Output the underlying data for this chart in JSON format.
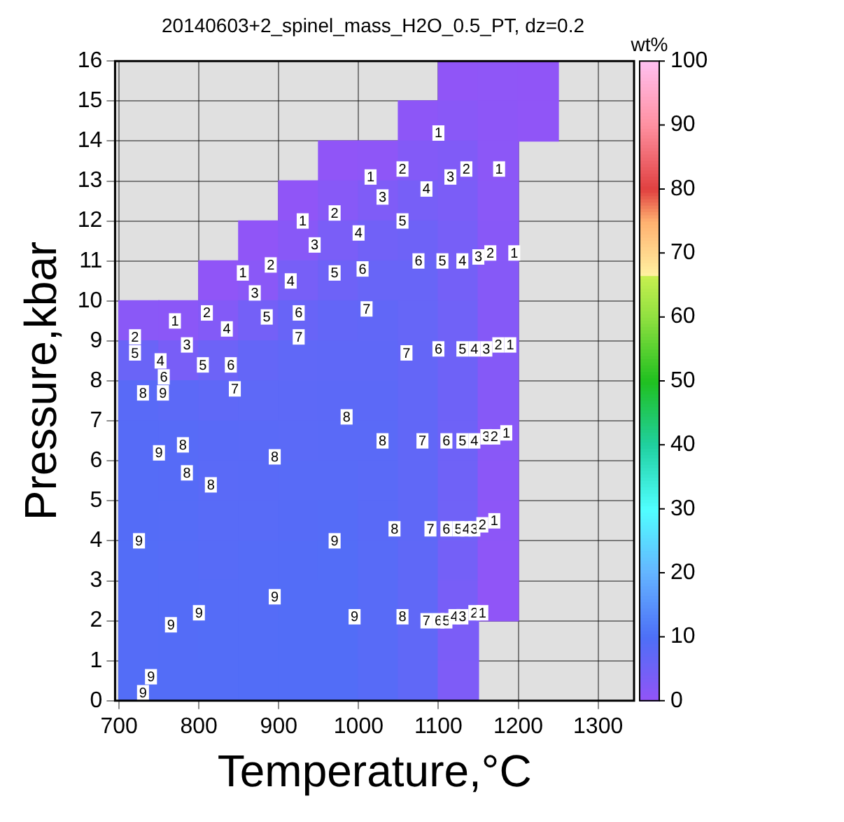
{
  "chart_data": {
    "type": "scatter",
    "title": "20140603+2_spinel_mass_H2O_0.5_PT, dz=0.2",
    "xlabel": "Temperature,°C",
    "ylabel": "Pressure,kbar",
    "clabel": "wt%",
    "xlim": [
      695,
      1345
    ],
    "xticks": [
      700,
      800,
      900,
      1000,
      1100,
      1200,
      1300
    ],
    "ylim": [
      0,
      16
    ],
    "yticks": [
      0,
      1,
      2,
      3,
      4,
      5,
      6,
      7,
      8,
      9,
      10,
      11,
      12,
      13,
      14,
      15,
      16
    ],
    "clim": [
      0,
      100
    ],
    "cticks": [
      0,
      10,
      20,
      30,
      40,
      50,
      60,
      70,
      80,
      90,
      100
    ],
    "grid": true,
    "marker": "square",
    "x": [
      1125,
      1175,
      1225,
      1075,
      1125,
      1175,
      1225,
      975,
      1025,
      1075,
      1125,
      1175,
      925,
      975,
      1025,
      1075,
      1125,
      1175,
      875,
      925,
      975,
      1025,
      1075,
      1125,
      1175,
      825,
      875,
      925,
      975,
      1025,
      1075,
      1125,
      1175,
      725,
      775,
      825,
      875,
      925,
      975,
      1025,
      1075,
      1125,
      1175,
      725,
      775,
      825,
      875,
      925,
      975,
      1025,
      1075,
      1125,
      1175,
      725,
      775,
      825,
      875,
      925,
      975,
      1025,
      1075,
      1125,
      1175,
      725,
      775,
      825,
      875,
      925,
      975,
      1025,
      1075,
      1125,
      1175,
      725,
      775,
      825,
      875,
      925,
      975,
      1025,
      1075,
      1125,
      1175,
      725,
      775,
      825,
      875,
      925,
      975,
      1025,
      1075,
      1125,
      1175,
      725,
      775,
      825,
      875,
      925,
      975,
      1025,
      1075,
      1125,
      1175,
      725,
      775,
      825,
      875,
      925,
      975,
      1025,
      1075,
      1125,
      1175,
      725,
      775,
      825,
      875,
      925,
      975,
      1025,
      1075,
      1125,
      725,
      775,
      825,
      875,
      925,
      975,
      1025,
      1075,
      1125
    ],
    "values": [
      15.5,
      15.5,
      15.5,
      14.5,
      14.5,
      14.5,
      14.5,
      13.5,
      13.5,
      13.5,
      13.5,
      13.5,
      12.5,
      12.5,
      12.5,
      12.5,
      12.5,
      12.5,
      11.5,
      11.5,
      11.5,
      11.5,
      11.5,
      11.5,
      11.5,
      10.5,
      10.5,
      10.5,
      10.5,
      10.5,
      10.5,
      10.5,
      10.5,
      9.5,
      9.5,
      9.5,
      9.5,
      9.5,
      9.5,
      9.5,
      9.5,
      9.5,
      9.5,
      8.5,
      8.5,
      8.5,
      8.5,
      8.5,
      8.5,
      8.5,
      8.5,
      8.5,
      8.5,
      7.5,
      7.5,
      7.5,
      7.5,
      7.5,
      7.5,
      7.5,
      7.5,
      7.5,
      7.5,
      6.5,
      6.5,
      6.5,
      6.5,
      6.5,
      6.5,
      6.5,
      6.5,
      6.5,
      6.5,
      5.5,
      5.5,
      5.5,
      5.5,
      5.5,
      5.5,
      5.5,
      5.5,
      5.5,
      5.5,
      4.5,
      4.5,
      4.5,
      4.5,
      4.5,
      4.5,
      4.5,
      4.5,
      4.5,
      4.5,
      3.5,
      3.5,
      3.5,
      3.5,
      3.5,
      3.5,
      3.5,
      3.5,
      3.5,
      3.5,
      2.5,
      2.5,
      2.5,
      2.5,
      2.5,
      2.5,
      2.5,
      2.5,
      2.5,
      2.5,
      1.5,
      1.5,
      1.5,
      1.5,
      1.5,
      1.5,
      1.5,
      1.5,
      1.5,
      0.5,
      0.5,
      0.5,
      0.5,
      0.5,
      0.5,
      0.5,
      0.5,
      0.5
    ],
    "cvalues": [
      0.5,
      0.6,
      0.4,
      0.8,
      1.5,
      0.8,
      0.5,
      0.4,
      0.7,
      2.3,
      2.7,
      1.0,
      0.5,
      1.7,
      2.8,
      4.0,
      3.5,
      1.3,
      0.5,
      1.6,
      3.6,
      4.8,
      5.3,
      4.0,
      1.6,
      0.5,
      1.3,
      4.0,
      5.3,
      6.2,
      6.2,
      4.4,
      1.9,
      1.3,
      1.2,
      2.3,
      4.5,
      6.1,
      6.8,
      7.1,
      6.5,
      5.0,
      2.0,
      5.8,
      3.8,
      5.5,
      6.7,
      7.3,
      7.4,
      7.5,
      6.7,
      5.3,
      2.0,
      8.3,
      7.8,
      7.4,
      7.6,
      7.7,
      7.8,
      7.9,
      7.0,
      5.3,
      1.8,
      8.7,
      8.6,
      8.3,
      8.1,
      8.0,
      8.1,
      8.1,
      7.2,
      5.3,
      1.5,
      8.9,
      8.7,
      8.2,
      8.3,
      8.4,
      8.5,
      8.2,
      7.3,
      5.2,
      1.2,
      9.0,
      8.8,
      8.4,
      8.5,
      8.7,
      8.9,
      8.3,
      7.4,
      5.0,
      0.9,
      9.1,
      8.9,
      8.6,
      8.8,
      9.0,
      9.1,
      8.4,
      7.4,
      4.4,
      0.7,
      9.0,
      9.0,
      8.8,
      8.9,
      9.2,
      9.2,
      8.4,
      7.3,
      3.8,
      0.5,
      8.9,
      9.0,
      9.1,
      9.2,
      9.3,
      9.3,
      8.5,
      7.3,
      3.4,
      9.1,
      9.2,
      9.2,
      9.3,
      9.3,
      9.3,
      8.6,
      7.3,
      3.0
    ],
    "annotations": [
      {
        "text": "2",
        "x": 720,
        "y": 9.1
      },
      {
        "text": "5",
        "x": 720,
        "y": 8.7
      },
      {
        "text": "4",
        "x": 752,
        "y": 8.5
      },
      {
        "text": "6",
        "x": 756,
        "y": 8.1
      },
      {
        "text": "9",
        "x": 755,
        "y": 7.7
      },
      {
        "text": "8",
        "x": 730,
        "y": 7.7
      },
      {
        "text": "1",
        "x": 770,
        "y": 9.5
      },
      {
        "text": "2",
        "x": 810,
        "y": 9.7
      },
      {
        "text": "3",
        "x": 785,
        "y": 8.9
      },
      {
        "text": "4",
        "x": 835,
        "y": 9.3
      },
      {
        "text": "5",
        "x": 805,
        "y": 8.4
      },
      {
        "text": "6",
        "x": 840,
        "y": 8.4
      },
      {
        "text": "7",
        "x": 845,
        "y": 7.8
      },
      {
        "text": "3",
        "x": 870,
        "y": 10.2
      },
      {
        "text": "5",
        "x": 885,
        "y": 9.6
      },
      {
        "text": "6",
        "x": 925,
        "y": 9.7
      },
      {
        "text": "7",
        "x": 925,
        "y": 9.1
      },
      {
        "text": "1",
        "x": 855,
        "y": 10.7
      },
      {
        "text": "2",
        "x": 890,
        "y": 10.9
      },
      {
        "text": "4",
        "x": 915,
        "y": 10.5
      },
      {
        "text": "5",
        "x": 970,
        "y": 10.7
      },
      {
        "text": "6",
        "x": 1005,
        "y": 10.8
      },
      {
        "text": "7",
        "x": 1010,
        "y": 9.8
      },
      {
        "text": "1",
        "x": 930,
        "y": 12.0
      },
      {
        "text": "2",
        "x": 970,
        "y": 12.2
      },
      {
        "text": "3",
        "x": 945,
        "y": 11.4
      },
      {
        "text": "4",
        "x": 1000,
        "y": 11.7
      },
      {
        "text": "5",
        "x": 1055,
        "y": 12.0
      },
      {
        "text": "3",
        "x": 1030,
        "y": 12.6
      },
      {
        "text": "1",
        "x": 1015,
        "y": 13.1
      },
      {
        "text": "2",
        "x": 1055,
        "y": 13.3
      },
      {
        "text": "7",
        "x": 1060,
        "y": 8.7
      },
      {
        "text": "1",
        "x": 1100,
        "y": 14.2
      },
      {
        "text": "4",
        "x": 1085,
        "y": 12.8
      },
      {
        "text": "3",
        "x": 1115,
        "y": 13.1
      },
      {
        "text": "2",
        "x": 1135,
        "y": 13.3
      },
      {
        "text": "1",
        "x": 1176,
        "y": 13.3
      },
      {
        "text": "6",
        "x": 1075,
        "y": 11.0
      },
      {
        "text": "5",
        "x": 1105,
        "y": 11.0
      },
      {
        "text": "4",
        "x": 1130,
        "y": 11.0
      },
      {
        "text": "3",
        "x": 1150,
        "y": 11.1
      },
      {
        "text": "2",
        "x": 1165,
        "y": 11.2
      },
      {
        "text": "1",
        "x": 1195,
        "y": 11.2
      },
      {
        "text": "6",
        "x": 1100,
        "y": 8.8
      },
      {
        "text": "5",
        "x": 1130,
        "y": 8.8
      },
      {
        "text": "4",
        "x": 1145,
        "y": 8.8
      },
      {
        "text": "3",
        "x": 1160,
        "y": 8.8
      },
      {
        "text": "2",
        "x": 1175,
        "y": 8.9
      },
      {
        "text": "1",
        "x": 1190,
        "y": 8.9
      },
      {
        "text": "9",
        "x": 750,
        "y": 6.2
      },
      {
        "text": "8",
        "x": 780,
        "y": 6.4
      },
      {
        "text": "8",
        "x": 785,
        "y": 5.7
      },
      {
        "text": "8",
        "x": 815,
        "y": 5.4
      },
      {
        "text": "8",
        "x": 895,
        "y": 6.1
      },
      {
        "text": "8",
        "x": 985,
        "y": 7.1
      },
      {
        "text": "8",
        "x": 1030,
        "y": 6.5
      },
      {
        "text": "9",
        "x": 725,
        "y": 4.0
      },
      {
        "text": "9",
        "x": 970,
        "y": 4.0
      },
      {
        "text": "9",
        "x": 895,
        "y": 2.6
      },
      {
        "text": "9",
        "x": 800,
        "y": 2.2
      },
      {
        "text": "9",
        "x": 765,
        "y": 1.9
      },
      {
        "text": "8",
        "x": 1045,
        "y": 4.3
      },
      {
        "text": "9",
        "x": 995,
        "y": 2.1
      },
      {
        "text": "8",
        "x": 1055,
        "y": 2.1
      },
      {
        "text": "9",
        "x": 740,
        "y": 0.6
      },
      {
        "text": "9",
        "x": 730,
        "y": 0.2
      },
      {
        "text": "7",
        "x": 1080,
        "y": 6.5
      },
      {
        "text": "6",
        "x": 1110,
        "y": 6.5
      },
      {
        "text": "5",
        "x": 1130,
        "y": 6.5
      },
      {
        "text": "4",
        "x": 1145,
        "y": 6.5
      },
      {
        "text": "3",
        "x": 1160,
        "y": 6.6
      },
      {
        "text": "2",
        "x": 1170,
        "y": 6.6
      },
      {
        "text": "1",
        "x": 1185,
        "y": 6.7
      },
      {
        "text": "7",
        "x": 1090,
        "y": 4.3
      },
      {
        "text": "6",
        "x": 1110,
        "y": 4.3
      },
      {
        "text": "5",
        "x": 1125,
        "y": 4.3
      },
      {
        "text": "4",
        "x": 1135,
        "y": 4.3
      },
      {
        "text": "3",
        "x": 1145,
        "y": 4.3
      },
      {
        "text": "2",
        "x": 1155,
        "y": 4.4
      },
      {
        "text": "1",
        "x": 1170,
        "y": 4.5
      },
      {
        "text": "7",
        "x": 1085,
        "y": 2.0
      },
      {
        "text": "6",
        "x": 1100,
        "y": 2.0
      },
      {
        "text": "5",
        "x": 1110,
        "y": 2.0
      },
      {
        "text": "4",
        "x": 1120,
        "y": 2.1
      },
      {
        "text": "3",
        "x": 1130,
        "y": 2.1
      },
      {
        "text": "2",
        "x": 1145,
        "y": 2.2
      },
      {
        "text": "1",
        "x": 1155,
        "y": 2.2
      }
    ]
  }
}
